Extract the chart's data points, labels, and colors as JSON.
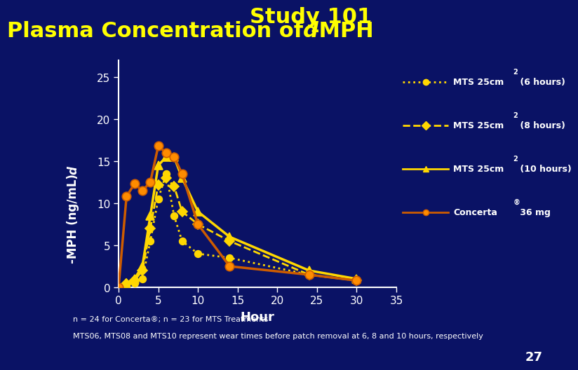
{
  "title_line1": "Study 101",
  "title_line2_pre": "Plasma Concentration of ",
  "title_line2_italic": "d",
  "title_line2_post": "-MPH",
  "title_color": "#FFFF00",
  "title_fontsize": 22,
  "bg_color": "#0a1265",
  "plot_bg_color": "#0a1265",
  "axes_color": "#ffffff",
  "tick_color": "#ffffff",
  "xlabel": "Hour",
  "xlabel_color": "#ffffff",
  "ylabel_color": "#ffffff",
  "xlim": [
    0,
    35
  ],
  "ylim": [
    0,
    27
  ],
  "xticks": [
    0,
    5,
    10,
    15,
    20,
    25,
    30,
    35
  ],
  "yticks": [
    0,
    5,
    10,
    15,
    20,
    25
  ],
  "footnote1": "n = 24 for Concerta®; n = 23 for MTS Treatments",
  "footnote2": "MTS06, MTS08 and MTS10 represent wear times before patch removal at 6, 8 and 10 hours, respectively",
  "footnote_color": "#ffffff",
  "page_number": "27",
  "series": [
    {
      "x": [
        0,
        1,
        2,
        3,
        4,
        5,
        6,
        7,
        8,
        10,
        14,
        24,
        30
      ],
      "y": [
        0,
        0.3,
        0.5,
        1.0,
        5.5,
        10.5,
        13.5,
        8.5,
        5.5,
        4.0,
        3.5,
        1.5,
        0.8
      ],
      "color": "#FFD700",
      "linestyle": "dotted",
      "linewidth": 2.0,
      "marker": "o",
      "markersize": 7,
      "markerfacecolor": "#FFD700",
      "markeredgecolor": "#FFD700"
    },
    {
      "x": [
        0,
        1,
        2,
        3,
        4,
        5,
        6,
        7,
        8,
        10,
        14,
        24,
        30
      ],
      "y": [
        0,
        0.4,
        0.8,
        2.0,
        7.0,
        12.2,
        13.0,
        12.0,
        9.0,
        7.5,
        5.5,
        1.5,
        0.8
      ],
      "color": "#FFD700",
      "linestyle": "dashed",
      "linewidth": 2.0,
      "marker": "D",
      "markersize": 7,
      "markerfacecolor": "#FFD700",
      "markeredgecolor": "#FFD700"
    },
    {
      "x": [
        0,
        1,
        2,
        3,
        4,
        5,
        6,
        7,
        8,
        10,
        14,
        24,
        30
      ],
      "y": [
        0,
        0.5,
        1.0,
        2.5,
        8.5,
        14.5,
        15.5,
        15.5,
        13.0,
        9.0,
        6.0,
        2.0,
        1.0
      ],
      "color": "#FFD700",
      "linestyle": "solid",
      "linewidth": 2.5,
      "marker": "^",
      "markersize": 8,
      "markerfacecolor": "#FFD700",
      "markeredgecolor": "#FFD700"
    },
    {
      "x": [
        0,
        1,
        2,
        3,
        4,
        5,
        6,
        7,
        8,
        10,
        14,
        24,
        30
      ],
      "y": [
        0,
        10.8,
        12.3,
        11.5,
        12.5,
        16.8,
        16.0,
        15.5,
        13.5,
        7.5,
        2.5,
        1.5,
        0.8
      ],
      "color": "#CD5C00",
      "linestyle": "solid",
      "linewidth": 2.5,
      "marker": "o",
      "markersize": 9,
      "markerfacecolor": "#FF8C00",
      "markeredgecolor": "#CD5C00"
    }
  ],
  "legend_labels": [
    [
      "MTS 25cm",
      "2",
      " (6 hours)"
    ],
    [
      "MTS 25cm",
      "2",
      " (8 hours)"
    ],
    [
      "MTS 25cm",
      "2",
      " (10 hours)"
    ],
    [
      "Concerta",
      "®",
      " 36 mg"
    ]
  ]
}
